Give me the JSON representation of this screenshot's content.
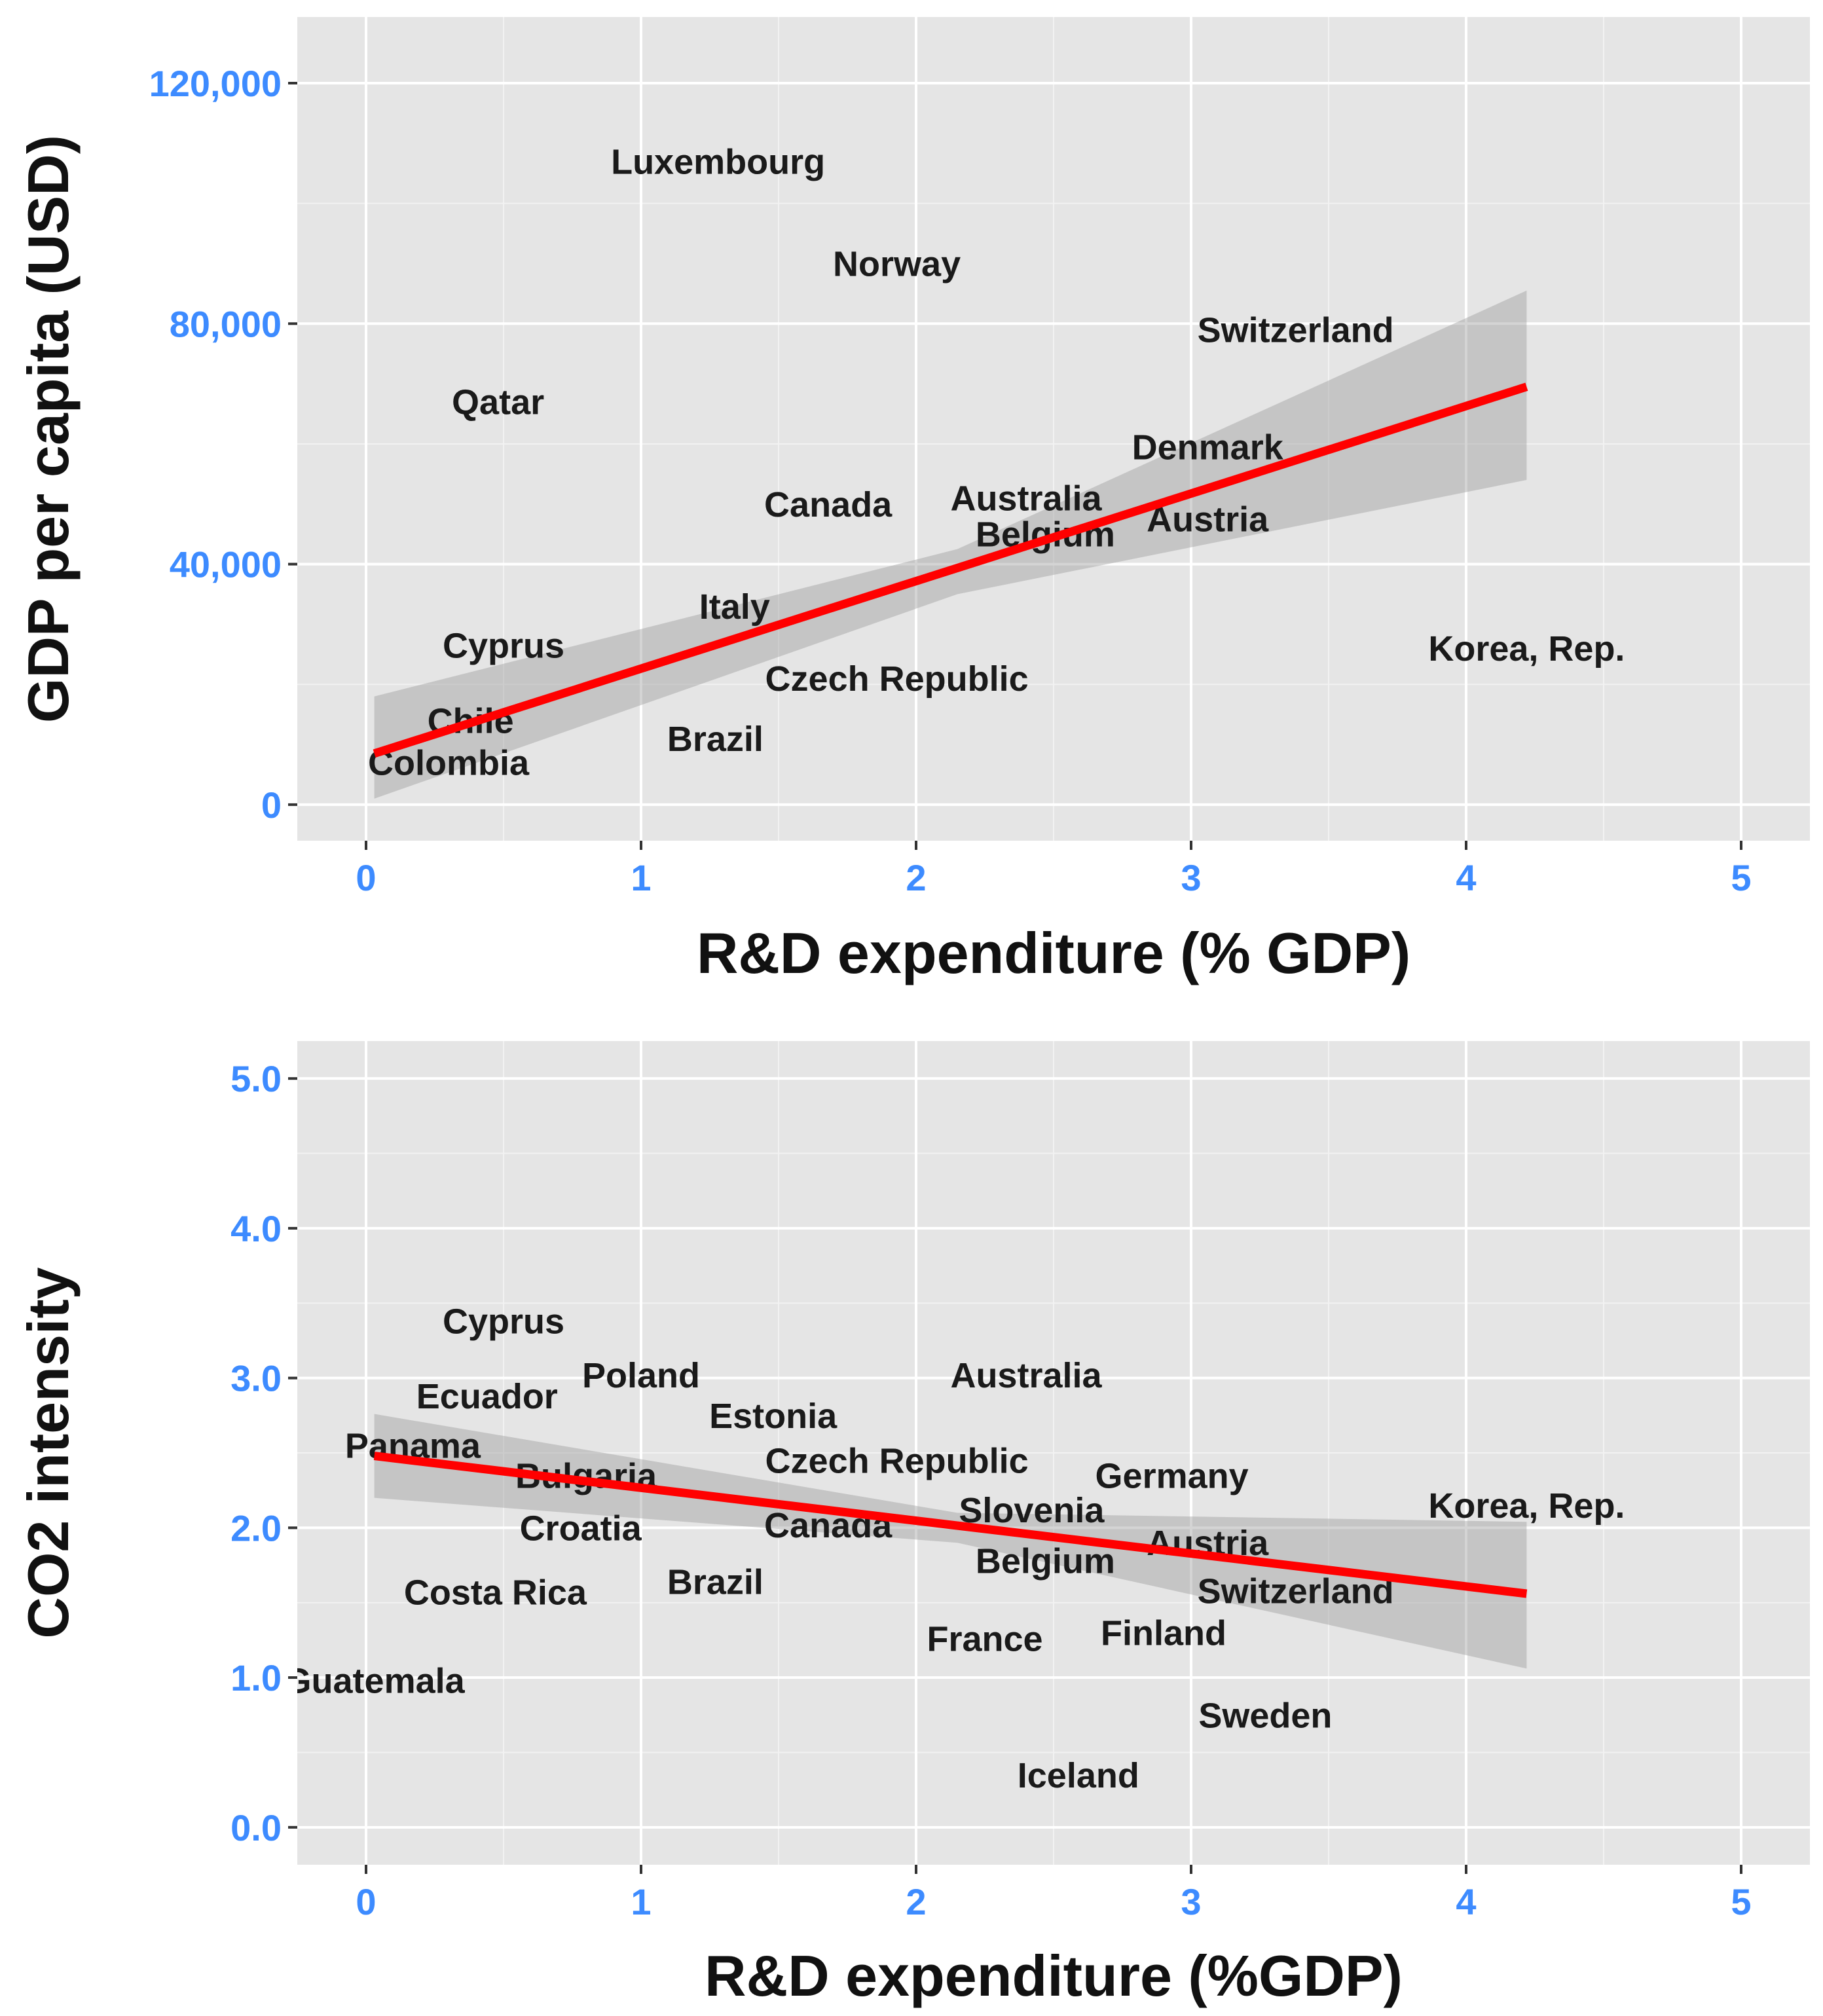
{
  "chart_data": [
    {
      "type": "scatter",
      "title": "",
      "xlabel": "R&D expenditure (% GDP)",
      "ylabel": "GDP per capita (USD)",
      "xlim": [
        -0.25,
        5.25
      ],
      "ylim": [
        -6000,
        131000
      ],
      "x_ticks": [
        0,
        1,
        2,
        3,
        4,
        5
      ],
      "y_ticks": [
        0,
        40000,
        80000,
        120000
      ],
      "x_tick_labels": [
        "0",
        "1",
        "2",
        "3",
        "4",
        "5"
      ],
      "y_tick_labels": [
        "0",
        "40,000",
        "80,000",
        "120,000"
      ],
      "grid": true,
      "points": [
        {
          "label": "Luxembourg",
          "x": 1.28,
          "y": 107000
        },
        {
          "label": "Norway",
          "x": 1.93,
          "y": 90000
        },
        {
          "label": "Switzerland",
          "x": 3.38,
          "y": 79000
        },
        {
          "label": "Qatar",
          "x": 0.48,
          "y": 67000
        },
        {
          "label": "Denmark",
          "x": 3.06,
          "y": 59500
        },
        {
          "label": "Canada",
          "x": 1.68,
          "y": 50000
        },
        {
          "label": "Australia",
          "x": 2.4,
          "y": 51000
        },
        {
          "label": "Belgium",
          "x": 2.47,
          "y": 45000
        },
        {
          "label": "Austria",
          "x": 3.06,
          "y": 47500
        },
        {
          "label": "Italy",
          "x": 1.34,
          "y": 33000
        },
        {
          "label": "Cyprus",
          "x": 0.5,
          "y": 26500
        },
        {
          "label": "Korea, Rep.",
          "x": 4.22,
          "y": 26000
        },
        {
          "label": "Czech Republic",
          "x": 1.93,
          "y": 21000
        },
        {
          "label": "Chile",
          "x": 0.38,
          "y": 14000
        },
        {
          "label": "Brazil",
          "x": 1.27,
          "y": 11000
        },
        {
          "label": "Colombia",
          "x": 0.3,
          "y": 7000
        }
      ],
      "fit": {
        "x": [
          0.03,
          4.22
        ],
        "y": [
          8500,
          69500
        ]
      },
      "confidence_band": {
        "x": [
          0.03,
          2.15,
          4.22
        ],
        "lower": [
          1000,
          35000,
          54000
        ],
        "upper": [
          18000,
          42500,
          85500
        ]
      },
      "colors": {
        "fit": "#ff0000",
        "band": "#999999",
        "panel": "#e5e5e5",
        "tick_labels": "#3d8bff"
      }
    },
    {
      "type": "scatter",
      "title": "",
      "xlabel": "R&D expenditure (%GDP)",
      "ylabel": "CO2 intensity",
      "xlim": [
        -0.25,
        5.25
      ],
      "ylim": [
        -0.25,
        5.25
      ],
      "x_ticks": [
        0,
        1,
        2,
        3,
        4,
        5
      ],
      "y_ticks": [
        0,
        1,
        2,
        3,
        4,
        5
      ],
      "x_tick_labels": [
        "0",
        "1",
        "2",
        "3",
        "4",
        "5"
      ],
      "y_tick_labels": [
        "0.0",
        "1.0",
        "2.0",
        "3.0",
        "4.0",
        "5.0"
      ],
      "grid": true,
      "points": [
        {
          "label": "Cyprus",
          "x": 0.5,
          "y": 3.38
        },
        {
          "label": "Poland",
          "x": 1.0,
          "y": 3.02
        },
        {
          "label": "Australia",
          "x": 2.4,
          "y": 3.02
        },
        {
          "label": "Ecuador",
          "x": 0.44,
          "y": 2.88
        },
        {
          "label": "Estonia",
          "x": 1.48,
          "y": 2.75
        },
        {
          "label": "Panama",
          "x": 0.17,
          "y": 2.55
        },
        {
          "label": "Czech Republic",
          "x": 1.93,
          "y": 2.45
        },
        {
          "label": "Germany",
          "x": 2.93,
          "y": 2.35
        },
        {
          "label": "Bulgaria",
          "x": 0.8,
          "y": 2.35
        },
        {
          "label": "Slovenia",
          "x": 2.42,
          "y": 2.12
        },
        {
          "label": "Korea, Rep.",
          "x": 4.22,
          "y": 2.15
        },
        {
          "label": "Croatia",
          "x": 0.78,
          "y": 2.0
        },
        {
          "label": "Canada",
          "x": 1.68,
          "y": 2.02
        },
        {
          "label": "Austria",
          "x": 3.06,
          "y": 1.9
        },
        {
          "label": "Belgium",
          "x": 2.47,
          "y": 1.78
        },
        {
          "label": "Switzerland",
          "x": 3.38,
          "y": 1.58
        },
        {
          "label": "Costa Rica",
          "x": 0.47,
          "y": 1.57
        },
        {
          "label": "Brazil",
          "x": 1.27,
          "y": 1.64
        },
        {
          "label": "Finland",
          "x": 2.9,
          "y": 1.3
        },
        {
          "label": "France",
          "x": 2.25,
          "y": 1.26
        },
        {
          "label": "Guatemala",
          "x": 0.03,
          "y": 0.98
        },
        {
          "label": "Sweden",
          "x": 3.27,
          "y": 0.75
        },
        {
          "label": "Iceland",
          "x": 2.59,
          "y": 0.35
        }
      ],
      "fit": {
        "x": [
          0.03,
          4.22
        ],
        "y": [
          2.48,
          1.56
        ]
      },
      "confidence_band": {
        "x": [
          0.03,
          2.15,
          4.22
        ],
        "lower": [
          2.2,
          1.9,
          1.06
        ],
        "upper": [
          2.76,
          2.1,
          2.04
        ]
      },
      "colors": {
        "fit": "#ff0000",
        "band": "#999999",
        "panel": "#e5e5e5",
        "tick_labels": "#3d8bff"
      }
    }
  ]
}
